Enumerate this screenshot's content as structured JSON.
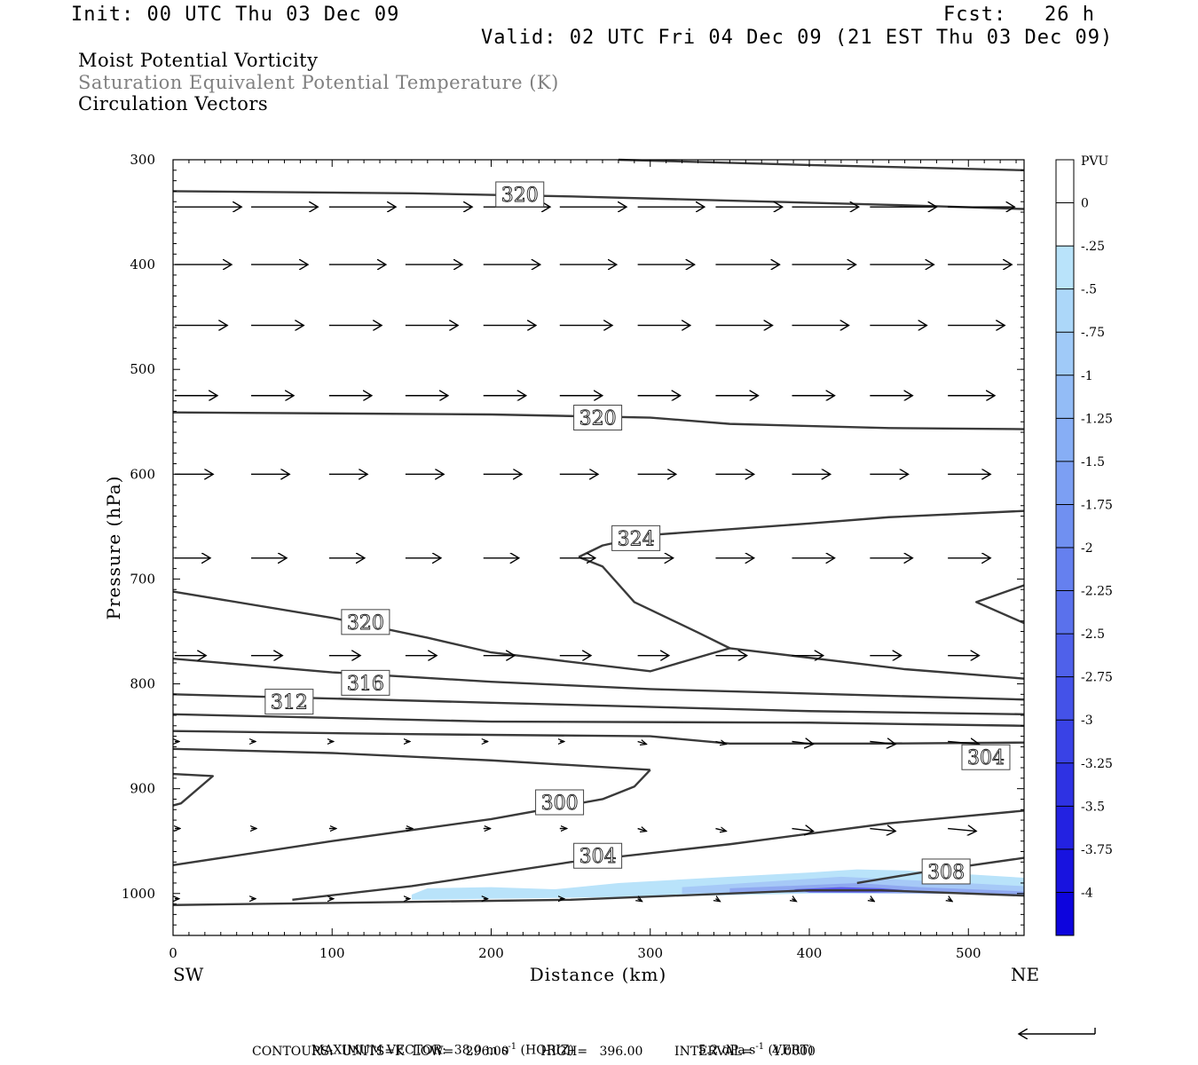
{
  "header": {
    "init": "Init: 00 UTC Thu 03 Dec 09",
    "fcst": "Fcst:   26 h",
    "valid": "Valid: 02 UTC Fri 04 Dec 09 (21 EST Thu 03 Dec 09)",
    "field1": "Moist Potential Vorticity",
    "field2": "Saturation Equivalent Potential Temperature (K)",
    "field3": "Circulation Vectors"
  },
  "colors": {
    "contour": "#3a3a3a",
    "field2_text": "#808080",
    "shade_light": "#b9e3fa",
    "shade_mid": "#8fa8f0",
    "shade_dark": "#5a5ae8"
  },
  "chart_data": {
    "type": "cross-section",
    "xlabel": "Distance (km)",
    "ylabel": "Pressure (hPa)",
    "xlim": [
      0,
      535
    ],
    "ylim": [
      1040,
      300
    ],
    "xticks": [
      0,
      100,
      200,
      300,
      400,
      500
    ],
    "yticks": [
      300,
      400,
      500,
      600,
      700,
      800,
      900,
      1000
    ],
    "left_end_label": "SW",
    "right_end_label": "NE",
    "contour_labels": [
      {
        "text": "320",
        "x": 218,
        "p": 333
      },
      {
        "text": "320",
        "x": 267,
        "p": 546
      },
      {
        "text": "324",
        "x": 291,
        "p": 661
      },
      {
        "text": "320",
        "x": 121,
        "p": 741
      },
      {
        "text": "316",
        "x": 121,
        "p": 799
      },
      {
        "text": "312",
        "x": 73,
        "p": 817
      },
      {
        "text": "304",
        "x": 511,
        "p": 870
      },
      {
        "text": "300",
        "x": 243,
        "p": 913
      },
      {
        "text": "304",
        "x": 267,
        "p": 964
      },
      {
        "text": "308",
        "x": 486,
        "p": 979
      }
    ],
    "contours": [
      {
        "value": 320,
        "points": [
          [
            0,
            330
          ],
          [
            150,
            332
          ],
          [
            250,
            335
          ],
          [
            350,
            339
          ],
          [
            450,
            343
          ],
          [
            535,
            347
          ]
        ]
      },
      {
        "value": 324,
        "points": [
          [
            280,
            300
          ],
          [
            400,
            305
          ],
          [
            535,
            310
          ]
        ]
      },
      {
        "value": 320,
        "points": [
          [
            0,
            541
          ],
          [
            200,
            543
          ],
          [
            300,
            546
          ],
          [
            350,
            552
          ],
          [
            450,
            556
          ],
          [
            535,
            557
          ]
        ]
      },
      {
        "value": 324,
        "points": [
          [
            255,
            679
          ],
          [
            270,
            668
          ],
          [
            300,
            658
          ],
          [
            400,
            647
          ],
          [
            450,
            641
          ],
          [
            535,
            635
          ]
        ]
      },
      {
        "value": 324,
        "points": [
          [
            255,
            679
          ],
          [
            270,
            688
          ],
          [
            290,
            722
          ],
          [
            330,
            751
          ],
          [
            350,
            766
          ]
        ]
      },
      {
        "value": 320,
        "points": [
          [
            0,
            712
          ],
          [
            100,
            737
          ],
          [
            160,
            756
          ],
          [
            200,
            770
          ],
          [
            300,
            788
          ],
          [
            350,
            766
          ],
          [
            460,
            786
          ],
          [
            535,
            795
          ]
        ]
      },
      {
        "value": 316,
        "points": [
          [
            0,
            776
          ],
          [
            100,
            789
          ],
          [
            200,
            798
          ],
          [
            300,
            805
          ],
          [
            535,
            815
          ]
        ]
      },
      {
        "value": 312,
        "points": [
          [
            0,
            810
          ],
          [
            200,
            818
          ],
          [
            400,
            826
          ],
          [
            535,
            829
          ]
        ]
      },
      {
        "value": 308,
        "points": [
          [
            0,
            829
          ],
          [
            200,
            836
          ],
          [
            400,
            837
          ],
          [
            535,
            840
          ]
        ]
      },
      {
        "value": 304,
        "points": [
          [
            0,
            845
          ],
          [
            150,
            848
          ],
          [
            300,
            850
          ],
          [
            350,
            857
          ],
          [
            440,
            857
          ],
          [
            535,
            856
          ]
        ]
      },
      {
        "value": 304,
        "points": [
          [
            0,
            862
          ],
          [
            100,
            866
          ],
          [
            200,
            873
          ],
          [
            300,
            882
          ]
        ]
      },
      {
        "value": 300,
        "points": [
          [
            300,
            882
          ],
          [
            290,
            898
          ],
          [
            270,
            910
          ],
          [
            200,
            929
          ],
          [
            100,
            950
          ],
          [
            0,
            973
          ]
        ]
      },
      {
        "value": 304,
        "points": [
          [
            0,
            886
          ],
          [
            25,
            888
          ],
          [
            5,
            914
          ],
          [
            0,
            916
          ]
        ]
      },
      {
        "value": 304,
        "points": [
          [
            535,
            706
          ],
          [
            505,
            722
          ],
          [
            535,
            742
          ]
        ]
      },
      {
        "value": 304,
        "points": [
          [
            75,
            1006
          ],
          [
            150,
            993
          ],
          [
            250,
            970
          ],
          [
            350,
            953
          ],
          [
            450,
            933
          ],
          [
            535,
            921
          ]
        ]
      },
      {
        "value": 308,
        "points": [
          [
            430,
            990
          ],
          [
            470,
            980
          ],
          [
            535,
            966
          ]
        ]
      },
      {
        "value": 312,
        "points": [
          [
            0,
            1011
          ],
          [
            250,
            1006
          ],
          [
            400,
            997
          ],
          [
            445,
            997
          ],
          [
            535,
            1002
          ]
        ]
      }
    ],
    "mpv_shading": {
      "levels_pvu": [
        -0.25,
        -0.5,
        -0.75,
        -1
      ],
      "region": "near surface, 150-535 km, 975-1006 hPa"
    },
    "vectors": {
      "rows_hpa": [
        345,
        400,
        458,
        525,
        600,
        680,
        773,
        855,
        938,
        1005
      ],
      "cols_km": [
        0,
        48,
        97,
        145,
        194,
        242,
        291,
        340,
        388,
        437,
        486
      ],
      "lengths": [
        [
          47,
          47,
          47,
          47,
          47,
          47,
          47,
          47,
          47,
          47,
          47
        ],
        [
          40,
          40,
          40,
          40,
          40,
          40,
          40,
          45,
          45,
          45,
          45
        ],
        [
          37,
          37,
          37,
          37,
          37,
          37,
          37,
          40,
          40,
          40,
          40
        ],
        [
          30,
          30,
          30,
          30,
          30,
          30,
          30,
          30,
          30,
          30,
          33
        ],
        [
          27,
          27,
          27,
          27,
          27,
          27,
          27,
          27,
          27,
          27,
          30
        ],
        [
          25,
          25,
          25,
          25,
          25,
          25,
          25,
          27,
          30,
          30,
          30
        ],
        [
          22,
          22,
          22,
          22,
          22,
          22,
          22,
          22,
          22,
          22,
          22
        ],
        [
          5,
          5,
          5,
          5,
          5,
          5,
          10,
          12,
          15,
          18,
          22
        ],
        [
          6,
          6,
          8,
          8,
          8,
          8,
          10,
          12,
          15,
          18,
          20
        ],
        [
          5,
          5,
          5,
          5,
          5,
          5,
          5,
          5,
          5,
          5,
          5
        ]
      ]
    },
    "colorbar": {
      "title": "PVU",
      "labels": [
        "0",
        "-.25",
        "-.5",
        "-.75",
        "-1",
        "-1.25",
        "-1.5",
        "-1.75",
        "-2",
        "-2.25",
        "-2.5",
        "-2.75",
        "-3",
        "-3.25",
        "-3.5",
        "-3.75",
        "-4"
      ],
      "colors": [
        "#ffffff",
        "#ffffff",
        "#b9e3fa",
        "#acd7f9",
        "#a0caf8",
        "#93bcf6",
        "#87aef5",
        "#7c9ff3",
        "#7090f1",
        "#6580ef",
        "#5a71ec",
        "#4f61ea",
        "#4452e8",
        "#3942e6",
        "#2e32e3",
        "#2322e1",
        "#1813df",
        "#0d04dd"
      ]
    }
  },
  "footer": {
    "max_vector_label": "MAXIMUM VECTOR:",
    "horiz_value": "38.0 m s",
    "horiz_tag": " (HORIZ)",
    "vert_value": "5.2 dPa s",
    "vert_tag": " (VERT)",
    "exponent": "-1",
    "contours": "CONTOURS:  UNITS=K  LOW=   296.00        HIGH=   396.00        INTERVAL=     4.0000"
  }
}
